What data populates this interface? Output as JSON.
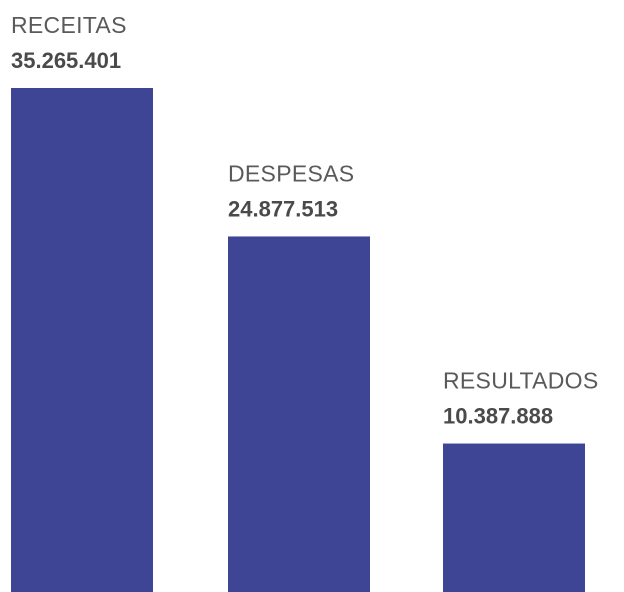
{
  "chart_data": {
    "type": "bar",
    "categories": [
      "RECEITAS",
      "DESPESAS",
      "RESULTADOS"
    ],
    "values": [
      35265401,
      24877513,
      10387888
    ],
    "value_labels": [
      "35.265.401",
      "24.877.513",
      "10.387.888"
    ],
    "title": "",
    "xlabel": "",
    "ylabel": "",
    "ylim": [
      0,
      35265401
    ],
    "grid": false,
    "legend": "none",
    "colors": {
      "bar": "#3e4595",
      "category_text": "#5a5a5a",
      "value_text": "#4a4a4a"
    }
  }
}
